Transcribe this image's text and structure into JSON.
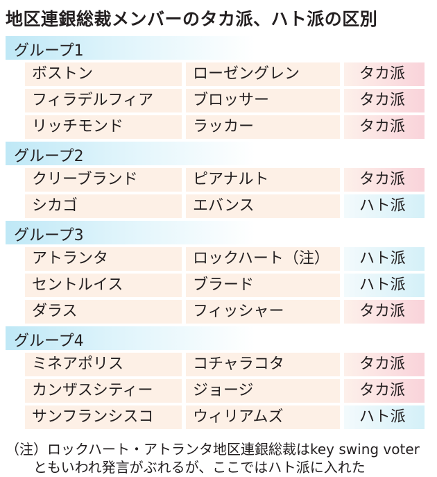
{
  "title": "地区連銀総裁メンバーのタカ派、ハト派の区別",
  "groups": [
    {
      "label": "グループ1",
      "rows": [
        {
          "city": "ボストン",
          "president": "ローゼングレン",
          "stance": "タカ派",
          "kind": "hawk"
        },
        {
          "city": "フィラデルフィア",
          "president": "ブロッサー",
          "stance": "タカ派",
          "kind": "hawk"
        },
        {
          "city": "リッチモンド",
          "president": "ラッカー",
          "stance": "タカ派",
          "kind": "hawk"
        }
      ]
    },
    {
      "label": "グループ2",
      "rows": [
        {
          "city": "クリーブランド",
          "president": "ピアナルト",
          "stance": "タカ派",
          "kind": "hawk"
        },
        {
          "city": "シカゴ",
          "president": "エバンス",
          "stance": "ハト派",
          "kind": "dove"
        }
      ]
    },
    {
      "label": "グループ3",
      "rows": [
        {
          "city": "アトランタ",
          "president": "ロックハート（注）",
          "stance": "ハト派",
          "kind": "dove"
        },
        {
          "city": "セントルイス",
          "president": "ブラード",
          "stance": "ハト派",
          "kind": "dove"
        },
        {
          "city": "ダラス",
          "president": "フィッシャー",
          "stance": "タカ派",
          "kind": "hawk"
        }
      ]
    },
    {
      "label": "グループ4",
      "rows": [
        {
          "city": "ミネアポリス",
          "president": "コチャラコタ",
          "stance": "タカ派",
          "kind": "hawk"
        },
        {
          "city": "カンザスシティー",
          "president": "ジョージ",
          "stance": "タカ派",
          "kind": "hawk"
        },
        {
          "city": "サンフランシスコ",
          "president": "ウィリアムズ",
          "stance": "ハト派",
          "kind": "dove"
        }
      ]
    }
  ],
  "note_line1": "（注）ロックハート・アトランタ地区連銀総裁はkey swing voter",
  "note_line2": "　　ともいわれ発言がぶれるが、ここではハト派に入れた",
  "colors": {
    "hawk": "#f9d3da",
    "dove": "#d4f0f8",
    "group_header": "#bfe8f6",
    "cell": "#fdf0e6"
  }
}
